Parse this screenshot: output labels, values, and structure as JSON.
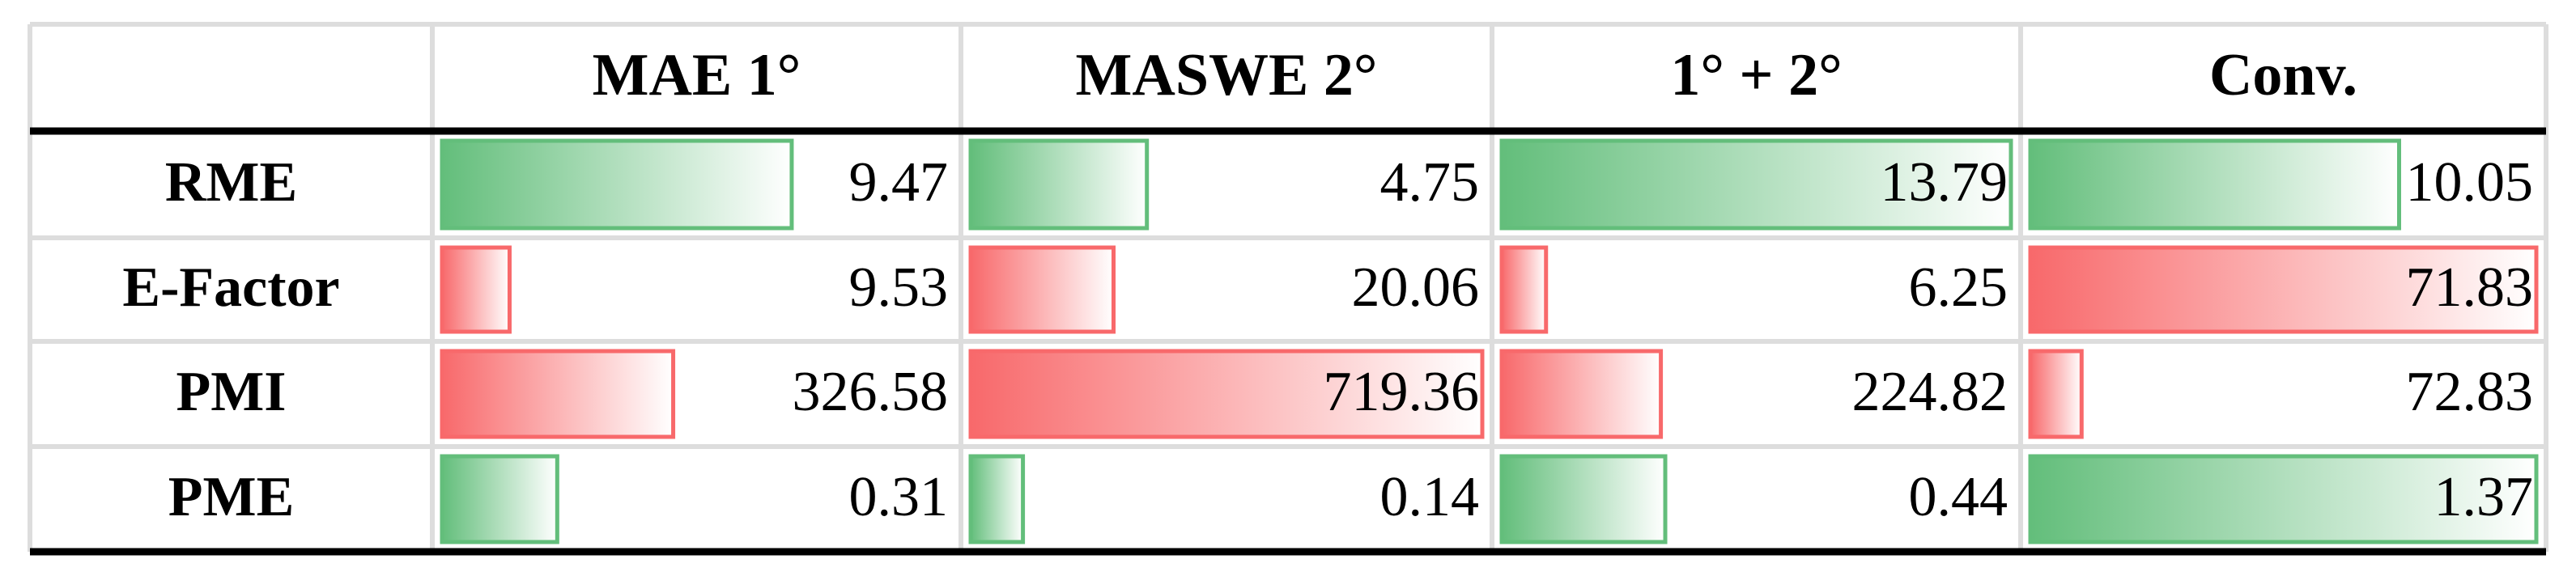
{
  "table": {
    "columns": [
      "MAE 1°",
      "MASWE 2°",
      "1° + 2°",
      "Conv."
    ],
    "rows": [
      {
        "label": "RME",
        "color": "#63be7b",
        "values": [
          9.47,
          4.75,
          13.79,
          10.05
        ]
      },
      {
        "label": "E-Factor",
        "color": "#f8696b",
        "values": [
          9.53,
          20.06,
          6.25,
          71.83
        ]
      },
      {
        "label": "PMI",
        "color": "#f8696b",
        "values": [
          326.58,
          719.36,
          224.82,
          72.83
        ]
      },
      {
        "label": "PME",
        "color": "#63be7b",
        "values": [
          0.31,
          0.14,
          0.44,
          1.37
        ]
      }
    ]
  }
}
